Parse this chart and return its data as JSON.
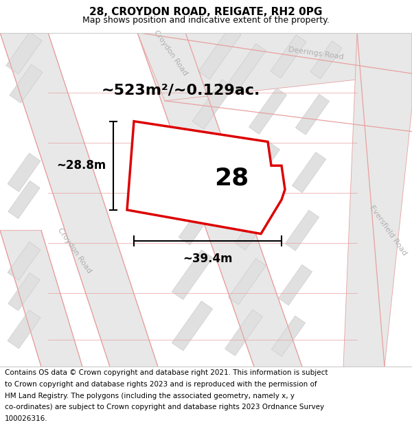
{
  "title": "28, CROYDON ROAD, REIGATE, RH2 0PG",
  "subtitle": "Map shows position and indicative extent of the property.",
  "footer_lines": [
    "Contains OS data © Crown copyright and database right 2021. This information is subject",
    "to Crown copyright and database rights 2023 and is reproduced with the permission of",
    "HM Land Registry. The polygons (including the associated geometry, namely x, y",
    "co-ordinates) are subject to Crown copyright and database rights 2023 Ordnance Survey",
    "100026316."
  ],
  "area_label": "~523m²/~0.129ac.",
  "width_label": "~39.4m",
  "height_label": "~28.8m",
  "number_label": "28",
  "map_bg": "#f2f2f2",
  "road_band_color": "#e8e8e8",
  "road_line_color": "#e8a0a0",
  "block_fill": "#e0e0e0",
  "block_edge": "#cccccc",
  "plot_fill": "#ffffff",
  "plot_edge": "#dd0000",
  "road_label_color": "#b0b0b0",
  "title_fontsize": 11,
  "subtitle_fontsize": 9,
  "footer_fontsize": 7.5,
  "area_fontsize": 16,
  "number_fontsize": 26,
  "dim_fontsize": 12
}
